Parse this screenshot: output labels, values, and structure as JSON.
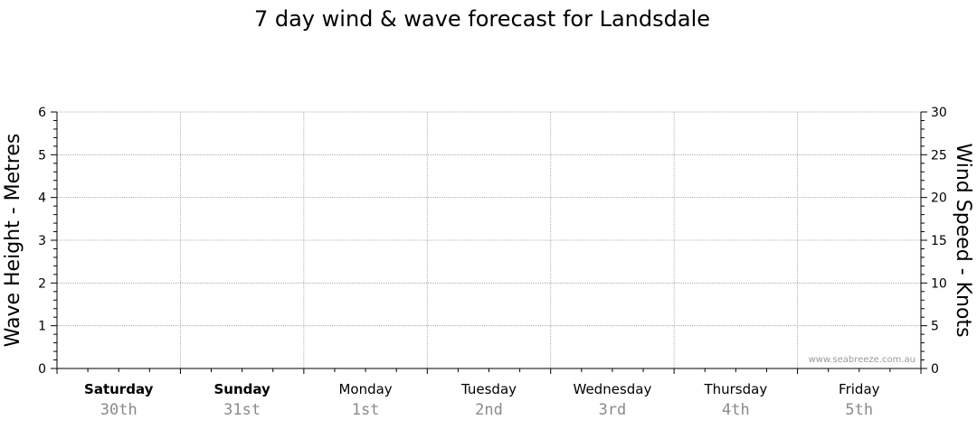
{
  "chart_data": {
    "type": "line",
    "title": "7 day wind & wave forecast for Landsdale",
    "ylabel_left": "Wave Height - Metres",
    "ylabel_right": "Wind Speed - Knots",
    "ylim_left": [
      0,
      6
    ],
    "ylim_right": [
      0,
      30
    ],
    "yticks_left": [
      "0",
      "1",
      "2",
      "3",
      "4",
      "5",
      "6"
    ],
    "yticks_right": [
      "0",
      "5",
      "10",
      "15",
      "20",
      "25",
      "30"
    ],
    "grid": true,
    "days": [
      {
        "day": "Saturday",
        "date": "30th",
        "bold": true
      },
      {
        "day": "Sunday",
        "date": "31st",
        "bold": true
      },
      {
        "day": "Monday",
        "date": "1st",
        "bold": false
      },
      {
        "day": "Tuesday",
        "date": "2nd",
        "bold": false
      },
      {
        "day": "Wednesday",
        "date": "3rd",
        "bold": false
      },
      {
        "day": "Thursday",
        "date": "4th",
        "bold": false
      },
      {
        "day": "Friday",
        "date": "5th",
        "bold": false
      }
    ],
    "series": [],
    "watermark": "www.seabreeze.com.au"
  }
}
